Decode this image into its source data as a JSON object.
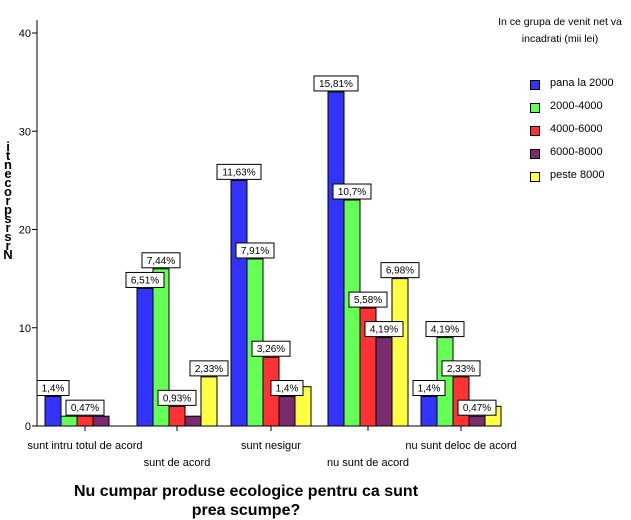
{
  "chart_data": {
    "type": "bar",
    "title": "",
    "xlabel": "Nu cumpar produse ecologice pentru ca sunt prea scumpe?",
    "ylabel": "rândurile procentaje N",
    "ylabel_glyphs": [
      "i",
      "t",
      "n",
      "e",
      "c",
      "o",
      "r",
      "p",
      "s",
      "r",
      "s",
      "r",
      "N"
    ],
    "ylim": [
      0,
      40
    ],
    "yticks": [
      0,
      10,
      20,
      30,
      40
    ],
    "grid": false,
    "legend_title": "In ce grupa de venit net va incadrati (mii lei)",
    "legend_position": "right",
    "categories": [
      "sunt intru totul de acord",
      "sunt de acord",
      "sunt nesigur",
      "nu sunt de acord",
      "nu sunt deloc de acord"
    ],
    "series": [
      {
        "name": "pana la 2000",
        "color": "#3333ff",
        "values": [
          3,
          14,
          25,
          34,
          3
        ],
        "labels": [
          "1,4%",
          "6,51%",
          "11,63%",
          "15,81%",
          "1,4%"
        ]
      },
      {
        "name": "2000-4000",
        "color": "#66ff55",
        "values": [
          1,
          16,
          17,
          23,
          9
        ],
        "labels": [
          "",
          "7,44%",
          "7,91%",
          "10,7%",
          "4,19%"
        ]
      },
      {
        "name": "4000-6000",
        "color": "#ff3333",
        "values": [
          1,
          2,
          7,
          12,
          5
        ],
        "labels": [
          "0,47%",
          "0,93%",
          "3,26%",
          "5,58%",
          "2,33%"
        ]
      },
      {
        "name": "6000-8000",
        "color": "#7a2a6e",
        "values": [
          1,
          1,
          3,
          9,
          1
        ],
        "labels": [
          "",
          "",
          "1,4%",
          "4,19%",
          "0,47%"
        ]
      },
      {
        "name": "peste 8000",
        "color": "#ffff44",
        "values": [
          0,
          5,
          4,
          15,
          2
        ],
        "labels": [
          "",
          "2,33%",
          "",
          "6,98%",
          ""
        ]
      }
    ]
  }
}
